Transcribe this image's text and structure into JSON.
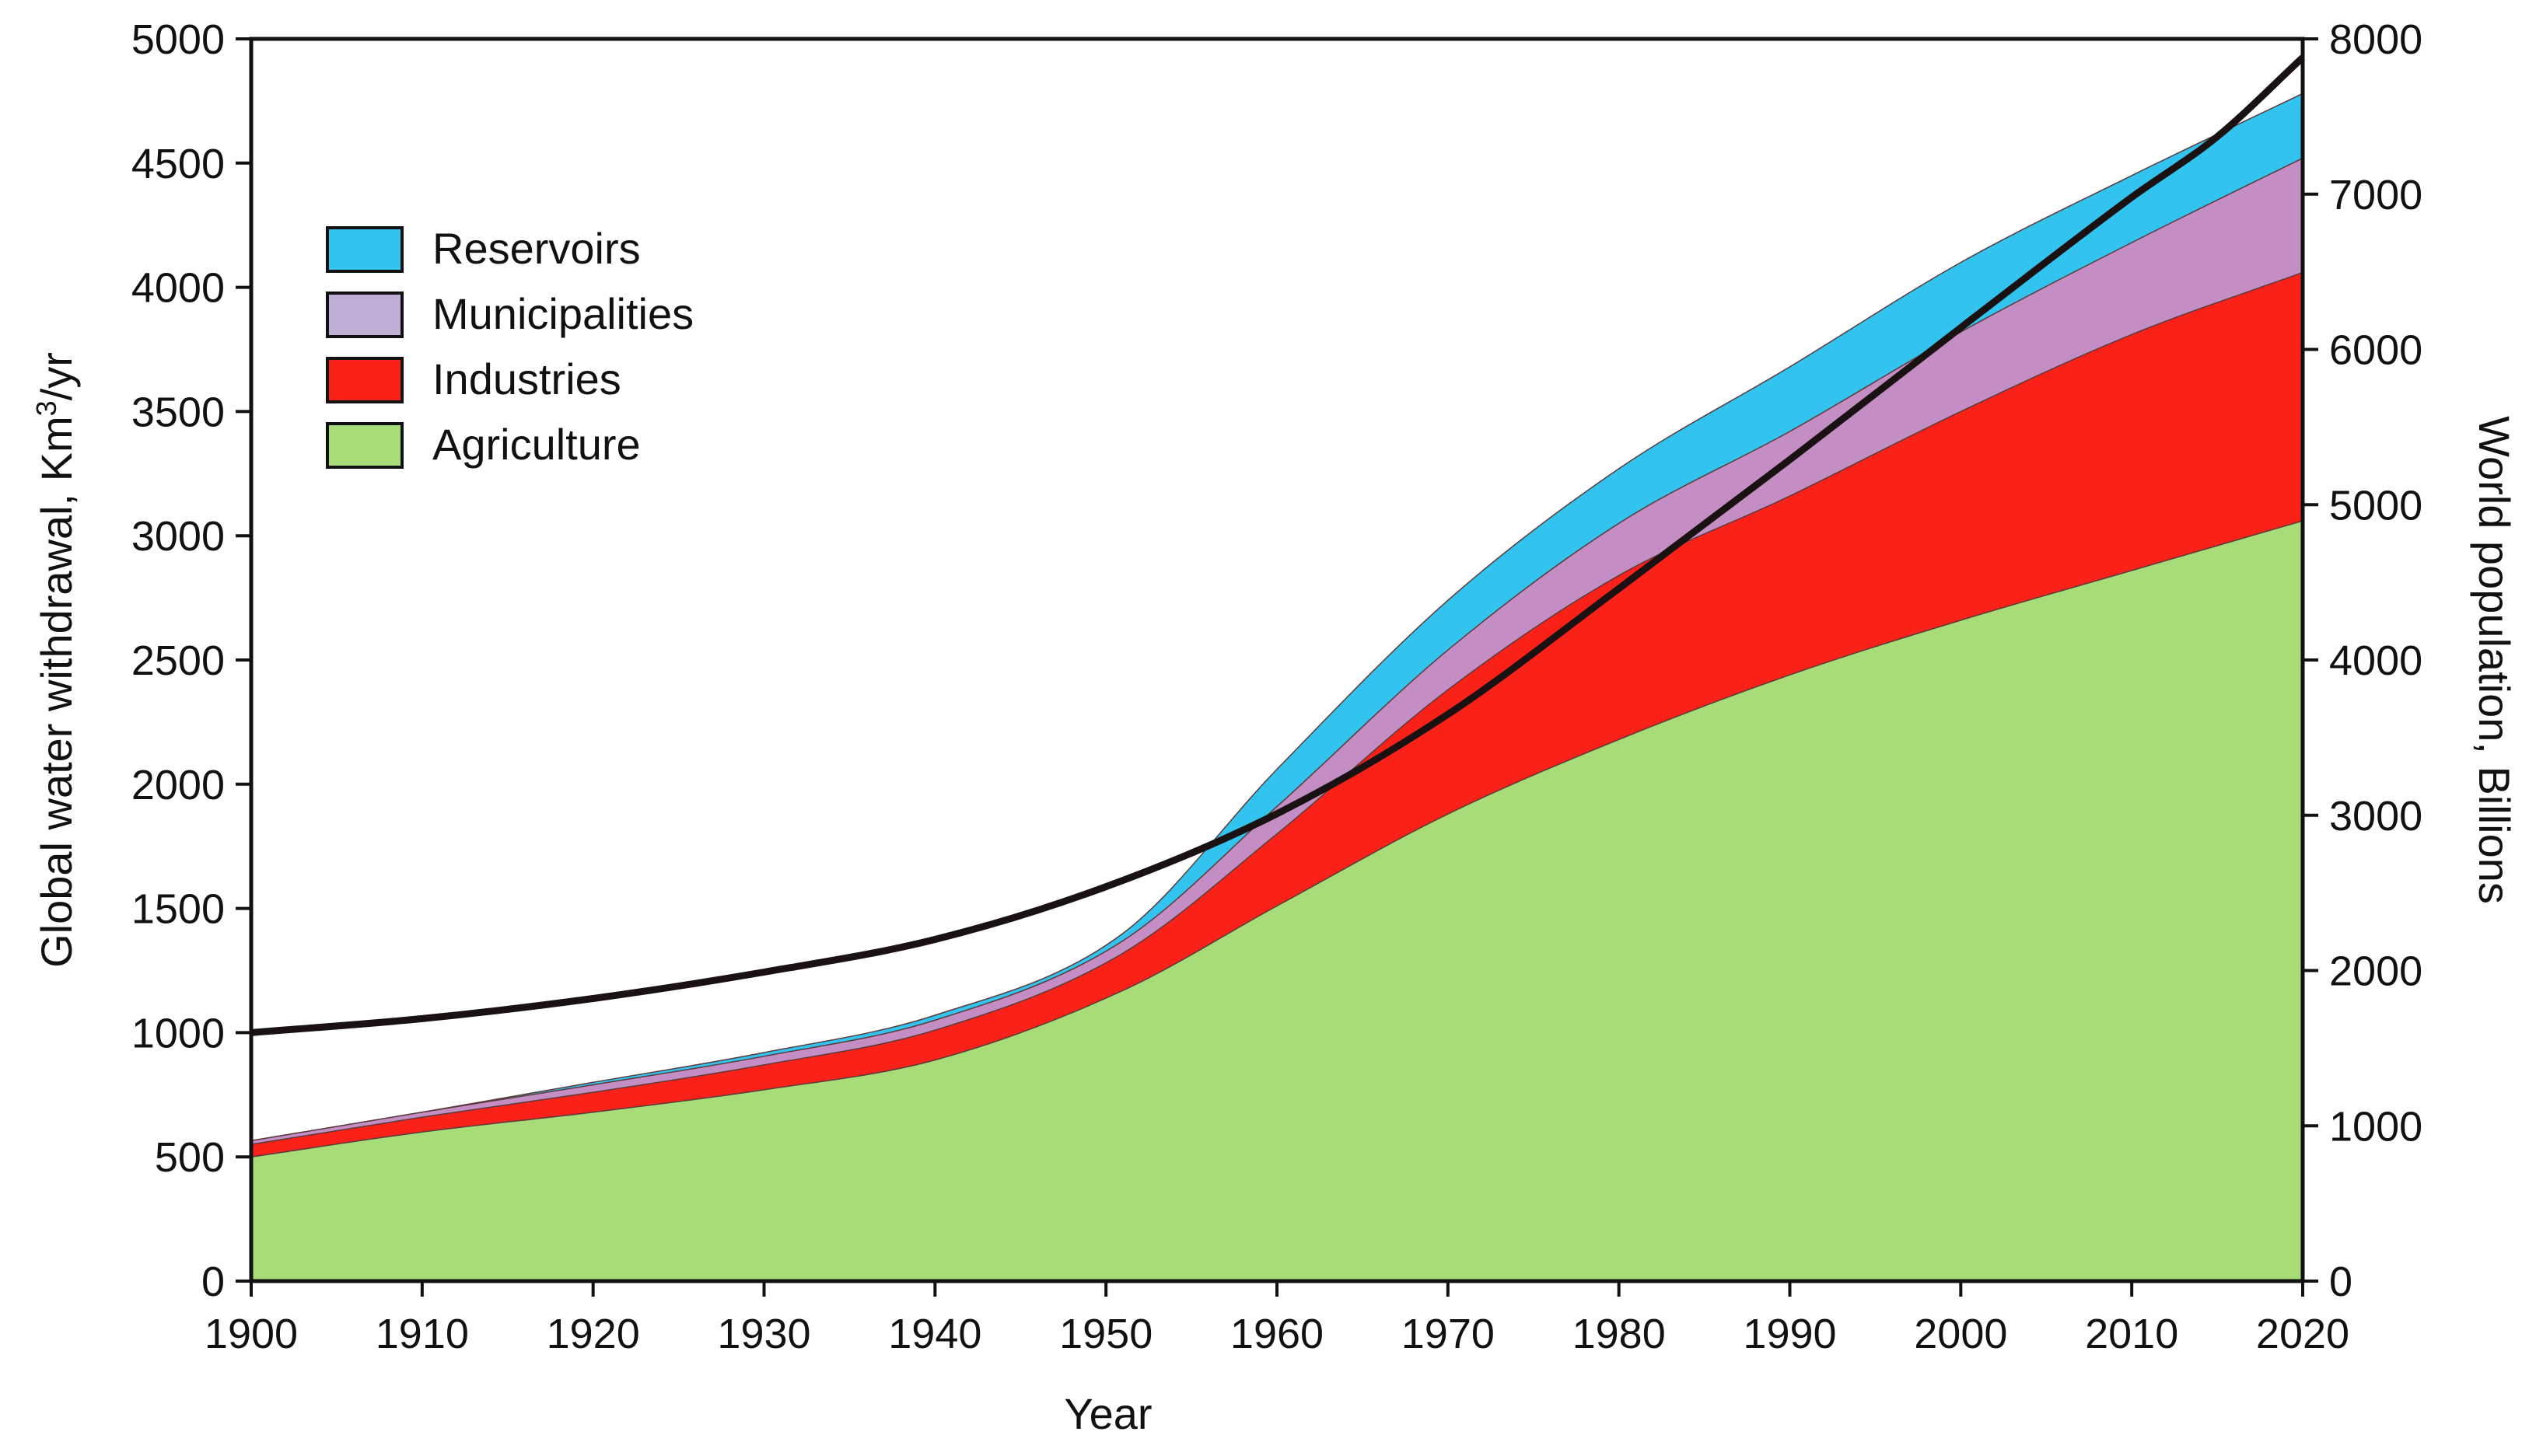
{
  "chart_data": {
    "type": "area",
    "stacked": true,
    "xlabel": "Year",
    "ylabel_prefix": "Global water withdrawal, Km",
    "ylabel_sup": "3",
    "ylabel_suffix": "/yr",
    "y2label": "World population,  Billions",
    "xlim": [
      1900,
      2020
    ],
    "ylim": [
      0,
      5000
    ],
    "y2lim": [
      0,
      8000
    ],
    "xticks": [
      1900,
      1910,
      1920,
      1930,
      1940,
      1950,
      1960,
      1970,
      1980,
      1990,
      2000,
      2010,
      2020
    ],
    "yticks": [
      0,
      500,
      1000,
      1500,
      2000,
      2500,
      3000,
      3500,
      4000,
      4500,
      5000
    ],
    "y2ticks": [
      0,
      1000,
      2000,
      3000,
      4000,
      5000,
      6000,
      7000,
      8000
    ],
    "legend_position": "top-left",
    "x": [
      1900,
      1910,
      1920,
      1930,
      1940,
      1951,
      1960,
      1970,
      1980,
      1990,
      2000,
      2010,
      2020
    ],
    "series": [
      {
        "name": "Agriculture",
        "color": "#a8dc78",
        "values": [
          500,
          600,
          680,
          770,
          890,
          1170,
          1510,
          1880,
          2180,
          2440,
          2660,
          2860,
          3060
        ]
      },
      {
        "name": "Industries",
        "color": "#fa2218",
        "values": [
          50,
          60,
          80,
          100,
          120,
          150,
          290,
          500,
          660,
          720,
          840,
          950,
          1000
        ]
      },
      {
        "name": "Municipalities",
        "color": "#c48ec4",
        "values": [
          15,
          20,
          30,
          35,
          40,
          50,
          110,
          160,
          210,
          260,
          320,
          370,
          460
        ]
      },
      {
        "name": "Reservoirs",
        "color": "#33c3ef",
        "values": [
          0,
          0,
          10,
          15,
          20,
          30,
          150,
          200,
          220,
          260,
          280,
          270,
          260
        ]
      }
    ],
    "legend_swatch_colors": {
      "Reservoirs": "#33c3ef",
      "Municipalities": "#bfaed6",
      "Industries": "#fa2218",
      "Agriculture": "#a8dc78"
    },
    "legend_order": [
      "Reservoirs",
      "Municipalities",
      "Industries",
      "Agriculture"
    ],
    "population": {
      "name": "World population",
      "axis": "y2",
      "color": "#1a1212",
      "x": [
        1900,
        1910,
        1920,
        1930,
        1940,
        1950,
        1960,
        1970,
        1980,
        1990,
        2000,
        2010,
        2015,
        2020
      ],
      "values": [
        1600,
        1690,
        1820,
        1990,
        2200,
        2540,
        3010,
        3650,
        4460,
        5290,
        6140,
        6980,
        7370,
        7880
      ]
    }
  }
}
